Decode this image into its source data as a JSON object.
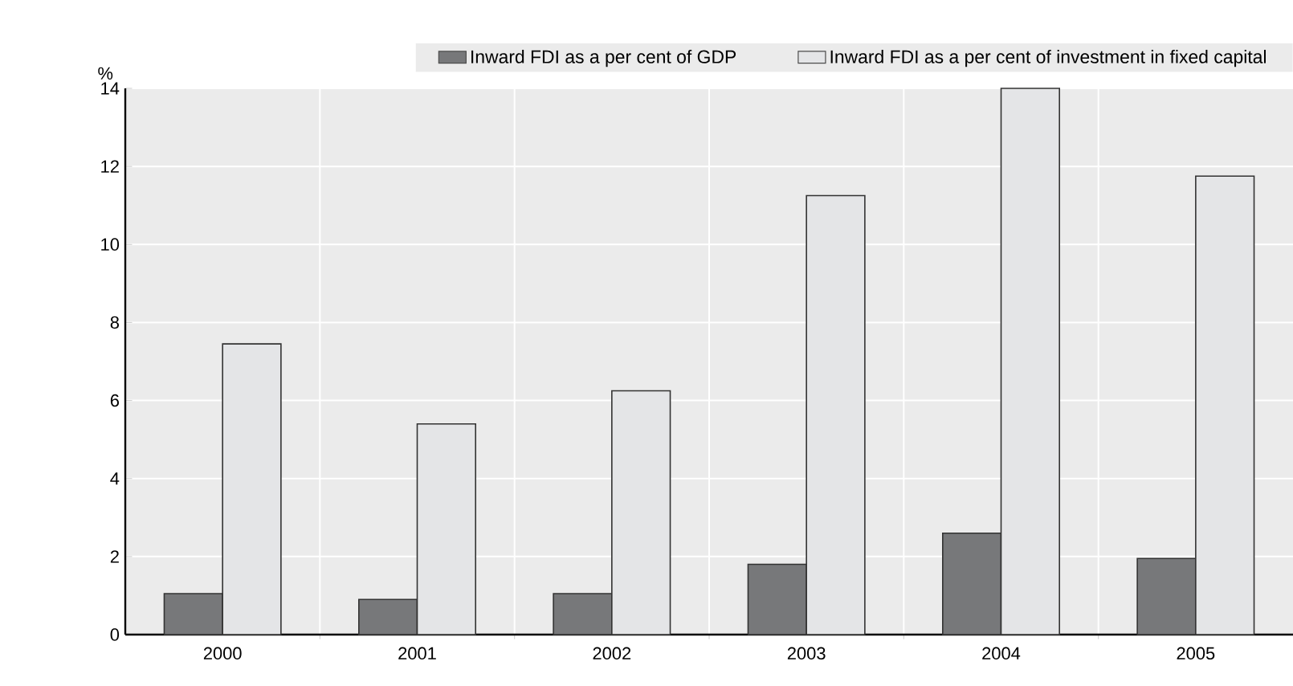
{
  "chart_data": {
    "type": "bar",
    "ylabel": "%",
    "categories": [
      "2000",
      "2001",
      "2002",
      "2003",
      "2004",
      "2005"
    ],
    "series": [
      {
        "name": "Inward FDI as a per cent of GDP",
        "color": "#77787a",
        "values": [
          1.05,
          0.9,
          1.05,
          1.8,
          2.6,
          1.95
        ]
      },
      {
        "name": "Inward FDI as a per cent of investment in fixed capital",
        "color": "#e4e5e7",
        "values": [
          7.45,
          5.4,
          6.25,
          11.25,
          14.0,
          11.75
        ]
      }
    ],
    "ylim": [
      0,
      14
    ],
    "yticks": [
      0,
      2,
      4,
      6,
      8,
      10,
      12,
      14
    ],
    "grid": true,
    "legend": "top"
  }
}
